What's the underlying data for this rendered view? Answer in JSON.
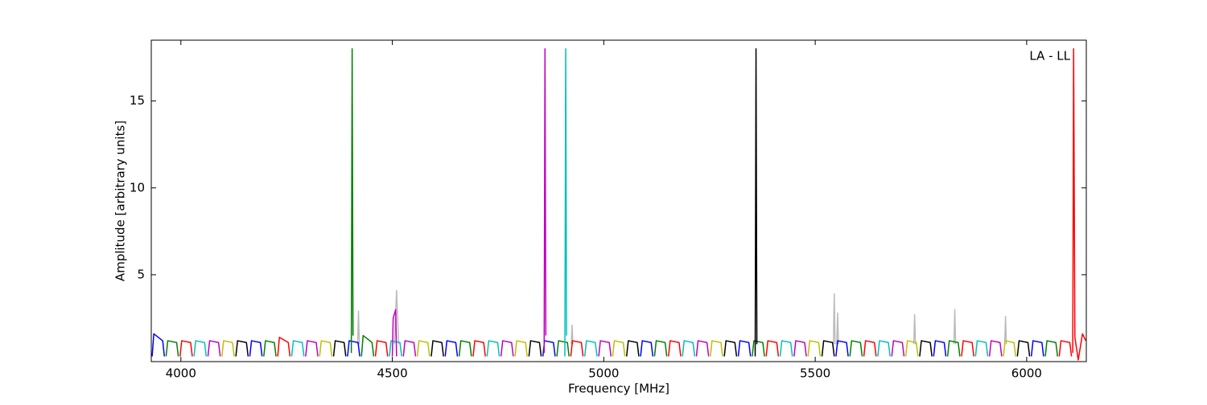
{
  "chart_data": {
    "type": "line",
    "annotation": "LA - LL",
    "x_label": "Frequency [MHz]",
    "y_label": "Amplitude [arbitrary units]",
    "xlim": [
      3930,
      6141
    ],
    "ylim": [
      0,
      18.5
    ],
    "xticks": [
      4000,
      4500,
      5000,
      5500,
      6000
    ],
    "yticks": [
      5,
      10,
      15
    ],
    "series": [
      {
        "color": "#bbbbbb",
        "x": [
          4418,
          4420,
          4422,
          null,
          4505,
          4510,
          4515,
          null,
          4923,
          4925,
          4927,
          null,
          5543,
          5545,
          5547,
          null,
          5551,
          5553,
          5555,
          null,
          5733,
          5735,
          5737,
          null,
          5828,
          5830,
          5832,
          null,
          5948,
          5950,
          5952
        ],
        "values": [
          1,
          2.9,
          1,
          null,
          1,
          4.1,
          1,
          null,
          1,
          2.1,
          1,
          null,
          1,
          3.9,
          1,
          null,
          1,
          2.8,
          1,
          null,
          1,
          2.7,
          1,
          null,
          1,
          3,
          1,
          null,
          1,
          2.6,
          1
        ]
      },
      {
        "color": "#0000ff",
        "x": [
          3932,
          3936,
          3957,
          3961,
          null,
          4163,
          4167,
          4188,
          4192,
          null,
          4394,
          4398,
          4419,
          4423,
          null,
          4625,
          4629,
          4650,
          4654,
          null,
          4856,
          4860,
          4881,
          4885,
          null,
          5087,
          5091,
          5112,
          5116,
          null,
          5318,
          5322,
          5343,
          5347,
          null,
          5549,
          5553,
          5574,
          5578,
          null,
          5780,
          5784,
          5805,
          5809,
          null,
          6011,
          6015,
          6036,
          6040
        ],
        "values": [
          0.3,
          1.6,
          1.2,
          0.3,
          null,
          0.3,
          1.2,
          1.1,
          0.3,
          null,
          0.3,
          1.2,
          1.1,
          0.3,
          null,
          0.3,
          1.2,
          1.1,
          0.3,
          null,
          0.3,
          1.2,
          1.1,
          0.3,
          null,
          0.3,
          1.2,
          1.1,
          0.3,
          null,
          0.3,
          1.2,
          1.1,
          0.3,
          null,
          0.3,
          1.2,
          1.1,
          0.3,
          null,
          0.3,
          1.2,
          1.1,
          0.3,
          null,
          0.3,
          1.2,
          1.1,
          0.3
        ]
      },
      {
        "color": "#008000",
        "x": [
          3965,
          3969,
          3990,
          3994,
          null,
          4196,
          4200,
          4221,
          4225,
          null,
          4403,
          4405,
          4407,
          null,
          4427,
          4431,
          4452,
          4456,
          null,
          4658,
          4662,
          4683,
          4687,
          null,
          4889,
          4893,
          4914,
          4918,
          null,
          5120,
          5124,
          5145,
          5149,
          null,
          5351,
          5355,
          5376,
          5380,
          null,
          5582,
          5586,
          5607,
          5611,
          null,
          5813,
          5817,
          5838,
          5842,
          null,
          6044,
          6048,
          6069,
          6073
        ],
        "values": [
          0.3,
          1.2,
          1.1,
          0.3,
          null,
          0.3,
          1.2,
          1.1,
          0.3,
          null,
          0.5,
          18,
          1.5,
          null,
          0.3,
          1.5,
          1.1,
          0.3,
          null,
          0.3,
          1.2,
          1.1,
          0.3,
          null,
          0.3,
          1.2,
          1.1,
          0.3,
          null,
          0.3,
          1.2,
          1.1,
          0.3,
          null,
          0.3,
          1.2,
          1.1,
          0.3,
          null,
          0.3,
          1.2,
          1.1,
          0.3,
          null,
          0.3,
          1.2,
          1.1,
          0.3,
          null,
          0.3,
          1.2,
          1.1,
          0.3
        ]
      },
      {
        "color": "#ff0000",
        "x": [
          3998,
          4002,
          4023,
          4027,
          null,
          4229,
          4233,
          4254,
          4258,
          null,
          4460,
          4464,
          4485,
          4489,
          null,
          4691,
          4695,
          4716,
          4720,
          null,
          4922,
          4926,
          4947,
          4951,
          null,
          5153,
          5157,
          5178,
          5182,
          null,
          5384,
          5388,
          5409,
          5413,
          null,
          5615,
          5619,
          5640,
          5644,
          null,
          5846,
          5850,
          5871,
          5875,
          null,
          6077,
          6081,
          6102,
          6106,
          null,
          6109,
          6111,
          6114,
          6122,
          6132,
          6140
        ],
        "values": [
          0.3,
          1.2,
          1.1,
          0.3,
          null,
          0.3,
          1.4,
          1.1,
          0.3,
          null,
          0.3,
          1.2,
          1.1,
          0.3,
          null,
          0.3,
          1.2,
          1.1,
          0.3,
          null,
          0.3,
          1.2,
          1.1,
          0.3,
          null,
          0.3,
          1.2,
          1.1,
          0.3,
          null,
          0.3,
          1.2,
          1.1,
          0.3,
          null,
          0.3,
          1.2,
          1.1,
          0.3,
          null,
          0.3,
          1.2,
          1.1,
          0.3,
          null,
          0.3,
          1.2,
          1.1,
          0.3,
          null,
          0.5,
          18,
          1.4,
          0.1,
          1.6,
          1.2
        ]
      },
      {
        "color": "#00bfbf",
        "x": [
          4031,
          4035,
          4056,
          4060,
          null,
          4262,
          4266,
          4287,
          4291,
          null,
          4493,
          4497,
          4518,
          4522,
          null,
          4724,
          4728,
          4749,
          4753,
          null,
          4908,
          4910,
          4912,
          null,
          4955,
          4959,
          4980,
          4984,
          null,
          5186,
          5190,
          5211,
          5215,
          null,
          5417,
          5421,
          5442,
          5446,
          null,
          5648,
          5652,
          5673,
          5677,
          null,
          5879,
          5883,
          5904,
          5908
        ],
        "values": [
          0.3,
          1.2,
          1.1,
          0.3,
          null,
          0.3,
          1.2,
          1.1,
          0.3,
          null,
          0.3,
          1.2,
          1.1,
          0.3,
          null,
          0.3,
          1.2,
          1.1,
          0.3,
          null,
          0.3,
          18,
          1.5,
          null,
          0.3,
          1.2,
          1.1,
          0.3,
          null,
          0.3,
          1.2,
          1.1,
          0.3,
          null,
          0.3,
          1.2,
          1.1,
          0.3,
          null,
          0.3,
          1.2,
          1.1,
          0.3,
          null,
          0.3,
          1.2,
          1.1,
          0.3
        ]
      },
      {
        "color": "#bf00bf",
        "x": [
          4064,
          4068,
          4089,
          4093,
          null,
          4295,
          4299,
          4320,
          4324,
          null,
          4500,
          4502,
          4508,
          4510,
          null,
          4526,
          4530,
          4551,
          4555,
          null,
          4757,
          4761,
          4782,
          4786,
          null,
          4859,
          4861,
          4863,
          null,
          4988,
          4992,
          5013,
          5017,
          null,
          5219,
          5223,
          5244,
          5248,
          null,
          5450,
          5454,
          5475,
          5479,
          null,
          5681,
          5685,
          5706,
          5710,
          null,
          5912,
          5916,
          5937,
          5941
        ],
        "values": [
          0.3,
          1.2,
          1.1,
          0.3,
          null,
          0.3,
          1.2,
          1.1,
          0.3,
          null,
          0.3,
          2.5,
          3,
          0.3,
          null,
          0.3,
          1.2,
          1.1,
          0.3,
          null,
          0.3,
          1.2,
          1.1,
          0.3,
          null,
          0.5,
          18,
          1.5,
          null,
          0.3,
          1.2,
          1.1,
          0.3,
          null,
          0.3,
          1.2,
          1.1,
          0.3,
          null,
          0.3,
          1.2,
          1.1,
          0.3,
          null,
          0.3,
          1.2,
          1.1,
          0.3,
          null,
          0.3,
          1.2,
          1.1,
          0.3
        ]
      },
      {
        "color": "#bfbf00",
        "x": [
          4097,
          4101,
          4122,
          4126,
          null,
          4328,
          4332,
          4353,
          4357,
          null,
          4559,
          4563,
          4584,
          4588,
          null,
          4790,
          4794,
          4815,
          4819,
          null,
          5021,
          5025,
          5046,
          5050,
          null,
          5252,
          5256,
          5277,
          5281,
          null,
          5483,
          5487,
          5508,
          5512,
          null,
          5714,
          5718,
          5739,
          5743,
          null,
          5945,
          5949,
          5970,
          5974
        ],
        "values": [
          0.3,
          1.2,
          1.1,
          0.3,
          null,
          0.3,
          1.2,
          1.1,
          0.3,
          null,
          0.3,
          1.2,
          1.1,
          0.3,
          null,
          0.3,
          1.2,
          1.1,
          0.3,
          null,
          0.3,
          1.2,
          1.1,
          0.3,
          null,
          0.3,
          1.2,
          1.1,
          0.3,
          null,
          0.3,
          1.2,
          1.1,
          0.3,
          null,
          0.3,
          1.2,
          1.1,
          0.3,
          null,
          0.3,
          1.2,
          1.1,
          0.3
        ]
      },
      {
        "color": "#000000",
        "x": [
          4130,
          4134,
          4155,
          4159,
          null,
          4361,
          4365,
          4386,
          4390,
          null,
          4592,
          4596,
          4617,
          4621,
          null,
          4823,
          4827,
          4848,
          4852,
          null,
          5054,
          5058,
          5079,
          5083,
          null,
          5285,
          5289,
          5310,
          5314,
          null,
          5358,
          5360,
          5362,
          null,
          5516,
          5520,
          5541,
          5545,
          null,
          5747,
          5751,
          5772,
          5776,
          null,
          5978,
          5982,
          6003,
          6007
        ],
        "values": [
          0.3,
          1.2,
          1.1,
          0.3,
          null,
          0.3,
          1.2,
          1.1,
          0.3,
          null,
          0.3,
          1.2,
          1.1,
          0.3,
          null,
          0.3,
          1.2,
          1.1,
          0.3,
          null,
          0.3,
          1.2,
          1.1,
          0.3,
          null,
          0.3,
          1.2,
          1.1,
          0.3,
          null,
          0.3,
          18,
          1,
          null,
          0.3,
          1.2,
          1.1,
          0.3,
          null,
          0.3,
          1.2,
          1.1,
          0.3,
          null,
          0.3,
          1.2,
          1.1,
          0.3
        ]
      }
    ]
  }
}
